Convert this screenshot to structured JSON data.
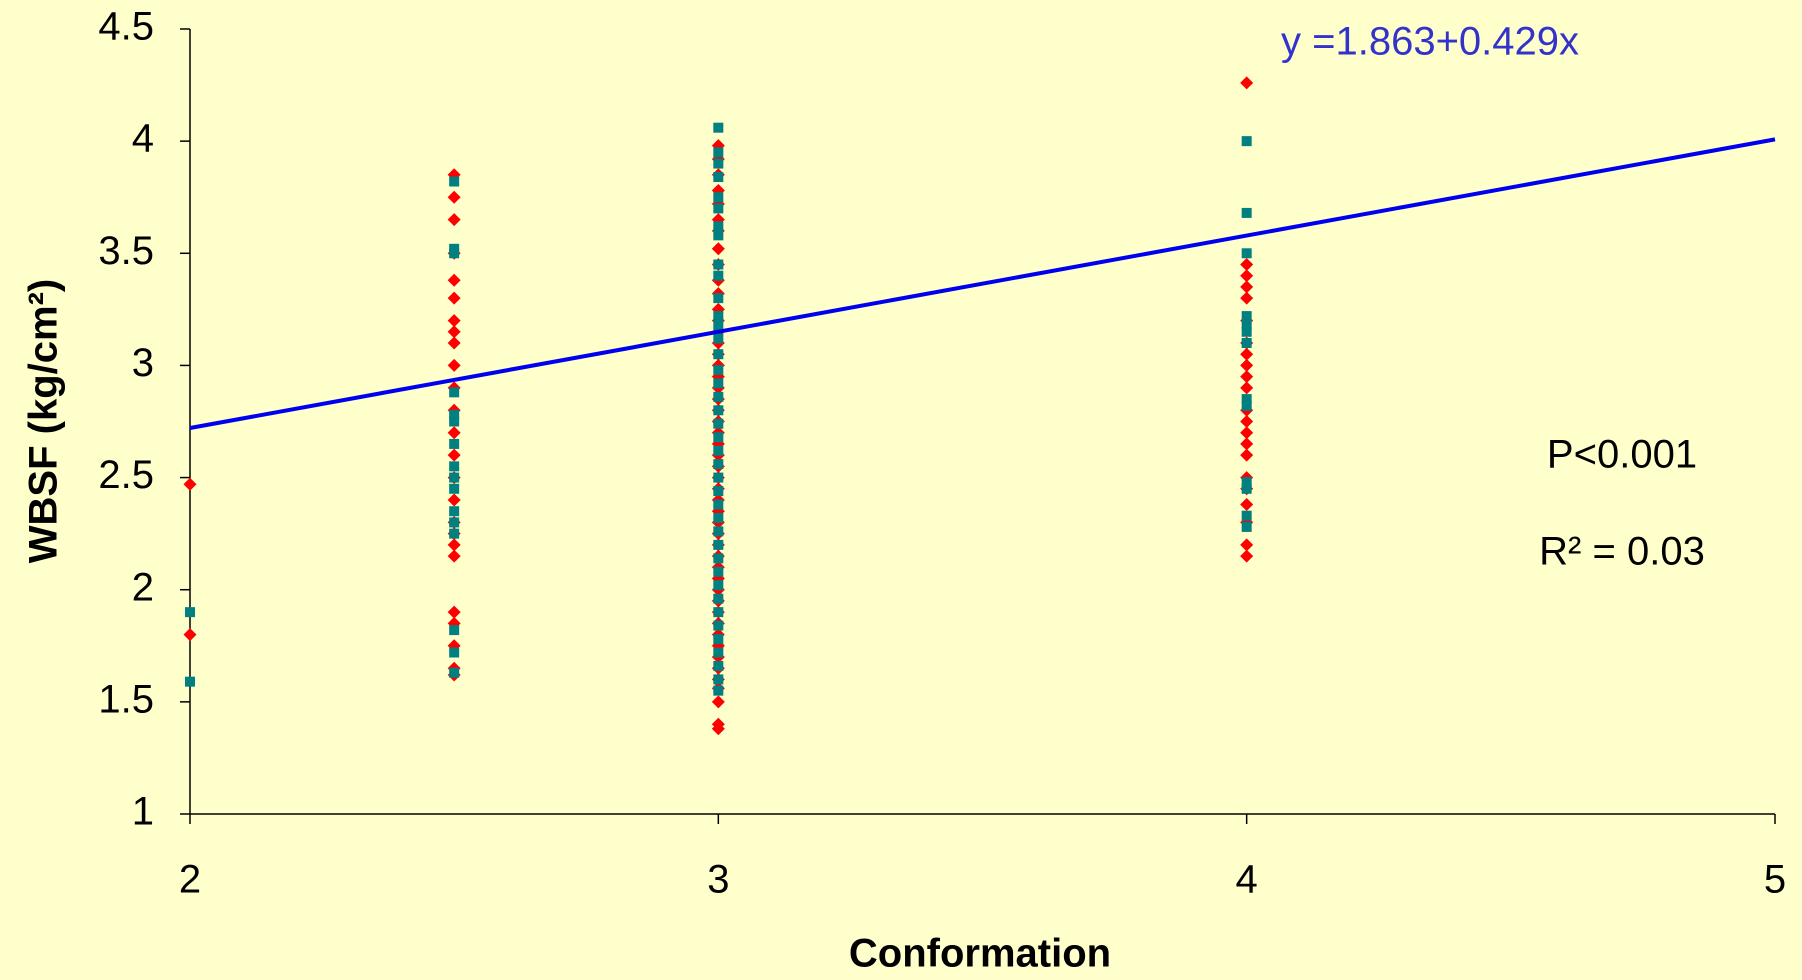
{
  "chart_data": {
    "type": "scatter",
    "xlabel": "Conformation",
    "ylabel": "WBSF (kg/cm²)",
    "xlim": [
      2,
      5
    ],
    "xticks": [
      2,
      3,
      4,
      5
    ],
    "ylim": [
      1,
      4.5
    ],
    "yticks": [
      1,
      {
        "value": 1.5,
        "label": "1.5"
      },
      2,
      {
        "value": 2.5,
        "label": "2.5"
      },
      3,
      {
        "value": 3.5,
        "label": "3.5"
      },
      4,
      {
        "value": 4.5,
        "label": "4.5"
      }
    ],
    "grid": false,
    "series": [
      {
        "color": "#ff0000",
        "marker": "diamond",
        "x": [
          2,
          2,
          2.5,
          2.5,
          2.5,
          2.5,
          2.5,
          2.5,
          2.5,
          2.5,
          2.5,
          2.5,
          2.5,
          2.5,
          2.5,
          2.5,
          2.5,
          2.5,
          2.5,
          2.5,
          2.5,
          2.5,
          2.5,
          2.5,
          2.5,
          2.5,
          2.5,
          3,
          3,
          3,
          3,
          3,
          3,
          3,
          3,
          3,
          3,
          3,
          3,
          3,
          3,
          3,
          3,
          3,
          3,
          3,
          3,
          3,
          3,
          3,
          3,
          3,
          3,
          3,
          3,
          3,
          3,
          3,
          3,
          3,
          3,
          3,
          3,
          3,
          3,
          3,
          3,
          3,
          3,
          3,
          3,
          3,
          3,
          3,
          3,
          3,
          4,
          4,
          4,
          4,
          4,
          4,
          4,
          4,
          4,
          4,
          4,
          4,
          4,
          4,
          4,
          4,
          4,
          4,
          4,
          4,
          4,
          4
        ],
        "values": [
          2.47,
          1.8,
          3.85,
          3.75,
          3.65,
          3.5,
          3.38,
          3.3,
          3.2,
          3.15,
          3.1,
          3.0,
          2.9,
          2.8,
          2.7,
          2.6,
          2.5,
          2.4,
          2.3,
          2.25,
          2.2,
          2.15,
          1.9,
          1.85,
          1.75,
          1.65,
          1.62,
          3.98,
          3.92,
          3.85,
          3.78,
          3.72,
          3.65,
          3.6,
          3.52,
          3.45,
          3.38,
          3.32,
          3.25,
          3.2,
          3.15,
          3.1,
          3.05,
          3.0,
          2.95,
          2.9,
          2.85,
          2.8,
          2.75,
          2.7,
          2.65,
          2.6,
          2.55,
          2.5,
          2.45,
          2.4,
          2.35,
          2.3,
          2.25,
          2.2,
          2.15,
          2.1,
          2.05,
          2.0,
          1.95,
          1.9,
          1.85,
          1.8,
          1.75,
          1.7,
          1.65,
          1.6,
          1.56,
          1.5,
          1.4,
          1.38,
          4.26,
          3.45,
          3.4,
          3.35,
          3.3,
          3.2,
          3.1,
          3.05,
          3.0,
          2.95,
          2.9,
          2.8,
          2.75,
          2.7,
          2.65,
          2.6,
          2.5,
          2.45,
          2.38,
          2.3,
          2.2,
          2.15
        ]
      },
      {
        "color": "#008080",
        "marker": "square",
        "x": [
          2,
          2,
          2.5,
          2.5,
          2.5,
          2.5,
          2.5,
          2.5,
          2.5,
          2.5,
          2.5,
          2.5,
          2.5,
          2.5,
          2.5,
          2.5,
          2.5,
          2.5,
          3,
          3,
          3,
          3,
          3,
          3,
          3,
          3,
          3,
          3,
          3,
          3,
          3,
          3,
          3,
          3,
          3,
          3,
          3,
          3,
          3,
          3,
          3,
          3,
          3,
          3,
          3,
          3,
          3,
          3,
          3,
          3,
          3,
          3,
          3,
          3,
          3,
          3,
          3,
          3,
          4,
          4,
          4,
          4,
          4,
          4,
          4,
          4,
          4,
          4,
          4,
          4,
          4
        ],
        "values": [
          1.9,
          1.59,
          3.82,
          3.52,
          3.5,
          2.88,
          2.78,
          2.75,
          2.65,
          2.55,
          2.5,
          2.45,
          2.35,
          2.3,
          2.25,
          1.82,
          1.72,
          1.63,
          4.06,
          3.95,
          3.9,
          3.84,
          3.75,
          3.7,
          3.62,
          3.58,
          3.45,
          3.4,
          3.3,
          3.22,
          3.18,
          3.12,
          3.05,
          2.98,
          2.92,
          2.86,
          2.8,
          2.74,
          2.68,
          2.62,
          2.56,
          2.5,
          2.44,
          2.38,
          2.32,
          2.26,
          2.2,
          2.14,
          2.08,
          2.02,
          1.96,
          1.9,
          1.84,
          1.78,
          1.72,
          1.66,
          1.6,
          1.55,
          4.0,
          3.68,
          3.5,
          3.22,
          3.18,
          3.15,
          3.1,
          2.85,
          2.82,
          2.48,
          2.45,
          2.33,
          2.28
        ]
      }
    ],
    "trendline": {
      "intercept": 1.863,
      "slope": 0.429,
      "color": "#0000ee"
    },
    "annotations": [
      "y =1.863+0.429x",
      "P<0.001",
      "R² = 0.03"
    ]
  }
}
